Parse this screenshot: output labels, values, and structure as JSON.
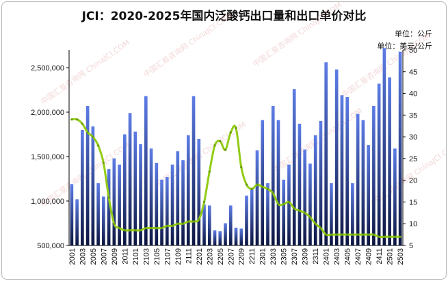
{
  "chart_data": {
    "type": "bar+line",
    "title": "JCI：2020-2025年国内泛酸钙出口量和出口单价对比",
    "unit_left": "单位：公斤",
    "unit_right": "单位：美元/公斤",
    "watermark": "中国汇易咨询网 ChinaJCI.COM",
    "y_left": {
      "min": 500000,
      "max": 2700000,
      "ticks": [
        500000,
        1000000,
        1500000,
        2000000,
        2500000
      ],
      "tick_labels": [
        "500,000",
        "1,000,000",
        "1,500,000",
        "2,000,000",
        "2,500,000"
      ]
    },
    "y_right": {
      "min": 5,
      "max": 50,
      "ticks": [
        5,
        10,
        15,
        20,
        25,
        30,
        35,
        40,
        45,
        50
      ],
      "tick_labels": [
        "5",
        "10",
        "15",
        "20",
        "25",
        "30",
        "35",
        "40",
        "45",
        "50"
      ]
    },
    "categories": [
      "2001",
      "2002",
      "2003",
      "2004",
      "2005",
      "2006",
      "2007",
      "2008",
      "2009",
      "2010",
      "2011",
      "2012",
      "2101",
      "2102",
      "2103",
      "2104",
      "2105",
      "2106",
      "2107",
      "2108",
      "2109",
      "2110",
      "2111",
      "2112",
      "2201",
      "2202",
      "2203",
      "2204",
      "2205",
      "2206",
      "2207",
      "2208",
      "2209",
      "2210",
      "2211",
      "2212",
      "2301",
      "2302",
      "2303",
      "2304",
      "2305",
      "2306",
      "2307",
      "2308",
      "2309",
      "2310",
      "2311",
      "2312",
      "2401",
      "2402",
      "2403",
      "2404",
      "2405",
      "2406",
      "2407",
      "2408",
      "2409",
      "2410",
      "2411",
      "2412",
      "2501",
      "2502",
      "2503"
    ],
    "x_tick_labels": [
      "2001",
      "2003",
      "2005",
      "2007",
      "2009",
      "2011",
      "2101",
      "2103",
      "2105",
      "2107",
      "2109",
      "2111",
      "2201",
      "2203",
      "2205",
      "2207",
      "2209",
      "2211",
      "2301",
      "2303",
      "2305",
      "2307",
      "2309",
      "2311",
      "2401",
      "2403",
      "2405",
      "2407",
      "2409",
      "2411",
      "2501",
      "2503"
    ],
    "series": [
      {
        "name": "出口量",
        "axis": "left",
        "type": "bar",
        "values": [
          1190000,
          1020000,
          1800000,
          2070000,
          1840000,
          1200000,
          1050000,
          1360000,
          1480000,
          1410000,
          1750000,
          1990000,
          1780000,
          1640000,
          2180000,
          1590000,
          1430000,
          1240000,
          1270000,
          1410000,
          1560000,
          1460000,
          1740000,
          2180000,
          1700000,
          960000,
          950000,
          670000,
          660000,
          750000,
          950000,
          700000,
          690000,
          1060000,
          1130000,
          1570000,
          1910000,
          1200000,
          2070000,
          1910000,
          1240000,
          1410000,
          2260000,
          1870000,
          1580000,
          1420000,
          1740000,
          1900000,
          2560000,
          1200000,
          2480000,
          2190000,
          2170000,
          1200000,
          1980000,
          1910000,
          1630000,
          2070000,
          2320000,
          2720000,
          2390000,
          1590000,
          2680000
        ]
      },
      {
        "name": "出口单价",
        "axis": "right",
        "type": "line",
        "values": [
          34,
          34,
          33,
          31,
          30,
          28,
          24,
          16,
          10,
          9,
          8.5,
          8.5,
          8.5,
          8.5,
          9,
          9,
          9,
          9,
          9.5,
          9.5,
          10,
          10,
          10.5,
          10.5,
          11,
          15,
          22,
          28,
          29,
          27,
          31,
          32,
          23,
          19,
          18,
          19,
          18.5,
          18,
          17,
          14.5,
          14.5,
          15,
          13.5,
          13,
          12.5,
          11.5,
          10,
          9,
          7.5,
          7.5,
          7.5,
          7.5,
          7.5,
          7.5,
          7.5,
          7.5,
          7.5,
          7.5,
          7,
          7,
          7,
          7,
          7
        ]
      }
    ],
    "colors": {
      "bar_top": "#5d7de6",
      "bar_bottom": "#0b1540",
      "line": "#92cc16",
      "marker": "#92cc16",
      "grid": "#cccccc"
    },
    "legend": "none",
    "grid": "none"
  }
}
